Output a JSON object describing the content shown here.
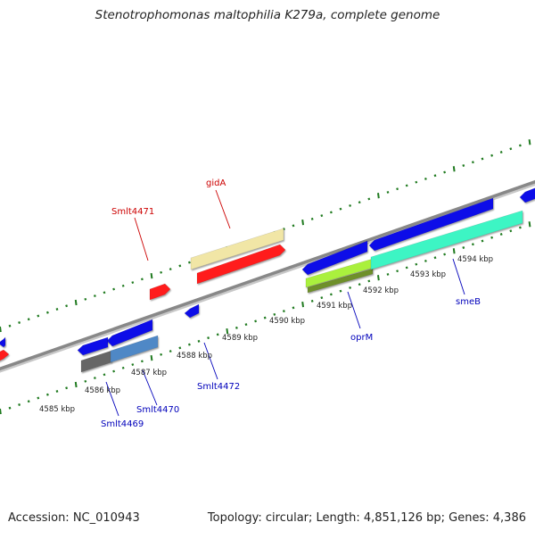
{
  "title": "Stenotrophomonas maltophilia K279a, complete genome",
  "footer": {
    "accession": "Accession: NC_010943",
    "summary": "Topology: circular; Length: 4,851,126 bp; Genes: 4,386"
  },
  "scale_labels": [
    "4585 kbp",
    "4586 kbp",
    "4587 kbp",
    "4588 kbp",
    "4589 kbp",
    "4590 kbp",
    "4591 kbp",
    "4592 kbp",
    "4593 kbp",
    "4594 kbp"
  ],
  "gene_labels": {
    "forward": [
      "gidA",
      "Smlt4471"
    ],
    "reverse": [
      "Smlt4469",
      "Smlt4470",
      "Smlt4472",
      "oprM",
      "smeB"
    ]
  },
  "colors": {
    "backbone": "#888888",
    "tick_green": "#1f7a1f",
    "red_gene": "#ff1a1a",
    "blue_gene": "#1010e8",
    "label_red": "#cc0000",
    "label_blue": "#0000bb",
    "feature_beige": "#f1e6a6",
    "feature_steel": "#4f88c6",
    "feature_grey": "#666666",
    "feature_lime": "#aaf03c",
    "feature_aqua": "#3cf5c4"
  }
}
